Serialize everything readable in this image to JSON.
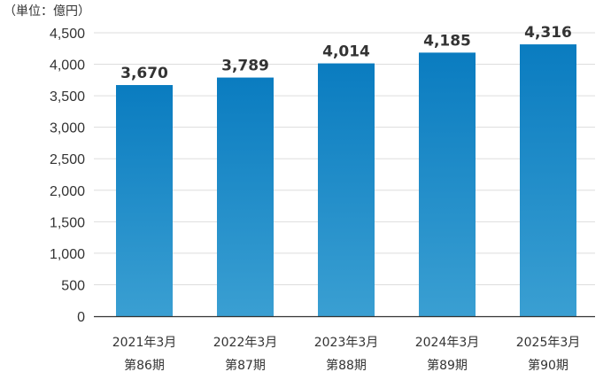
{
  "chart_data": {
    "type": "bar",
    "unit_label": "（単位：億円）",
    "categories": [
      [
        "2021年3月",
        "第86期"
      ],
      [
        "2022年3月",
        "第87期"
      ],
      [
        "2023年3月",
        "第88期"
      ],
      [
        "2024年3月",
        "第89期"
      ],
      [
        "2025年3月",
        "第90期"
      ]
    ],
    "values": [
      3670,
      3789,
      4014,
      4185,
      4316
    ],
    "value_labels": [
      "3,670",
      "3,789",
      "4,014",
      "4,185",
      "4,316"
    ],
    "ylim": [
      0,
      4500
    ],
    "yticks": [
      0,
      500,
      1000,
      1500,
      2000,
      2500,
      3000,
      3500,
      4000,
      4500
    ],
    "ytick_labels": [
      "0",
      "500",
      "1,000",
      "1,500",
      "2,000",
      "2,500",
      "3,000",
      "3,500",
      "4,000",
      "4,500"
    ],
    "grid": true,
    "colors": {
      "bar_top": "#0a7cc0",
      "bar_bottom": "#3a9fd2",
      "grid": "#dddddd",
      "axis": "#333333"
    }
  }
}
